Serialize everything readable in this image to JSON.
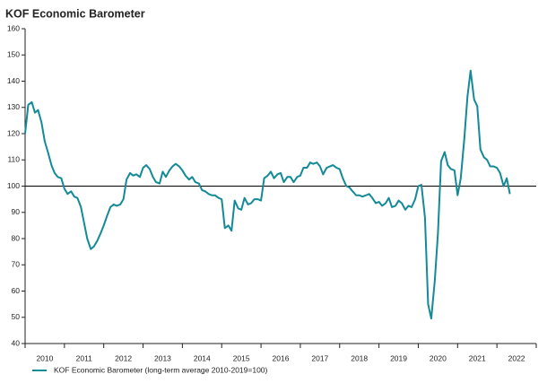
{
  "chart_data": {
    "type": "line",
    "title": "KOF Economic Barometer",
    "x": [
      2010,
      2010.08,
      2010.17,
      2010.25,
      2010.33,
      2010.42,
      2010.5,
      2010.58,
      2010.67,
      2010.75,
      2010.83,
      2010.92,
      2011,
      2011.08,
      2011.17,
      2011.25,
      2011.33,
      2011.42,
      2011.5,
      2011.58,
      2011.67,
      2011.75,
      2011.83,
      2011.92,
      2012,
      2012.08,
      2012.17,
      2012.25,
      2012.33,
      2012.42,
      2012.5,
      2012.58,
      2012.67,
      2012.75,
      2012.83,
      2012.92,
      2013,
      2013.08,
      2013.17,
      2013.25,
      2013.33,
      2013.42,
      2013.5,
      2013.58,
      2013.67,
      2013.75,
      2013.83,
      2013.92,
      2014,
      2014.08,
      2014.17,
      2014.25,
      2014.33,
      2014.42,
      2014.5,
      2014.58,
      2014.67,
      2014.75,
      2014.83,
      2014.92,
      2015,
      2015.08,
      2015.17,
      2015.25,
      2015.33,
      2015.42,
      2015.5,
      2015.58,
      2015.67,
      2015.75,
      2015.83,
      2015.92,
      2016,
      2016.08,
      2016.17,
      2016.25,
      2016.33,
      2016.42,
      2016.5,
      2016.58,
      2016.67,
      2016.75,
      2016.83,
      2016.92,
      2017,
      2017.08,
      2017.17,
      2017.25,
      2017.33,
      2017.42,
      2017.5,
      2017.58,
      2017.67,
      2017.75,
      2017.83,
      2017.92,
      2018,
      2018.08,
      2018.17,
      2018.25,
      2018.33,
      2018.42,
      2018.5,
      2018.58,
      2018.67,
      2018.75,
      2018.83,
      2018.92,
      2019,
      2019.08,
      2019.17,
      2019.25,
      2019.33,
      2019.42,
      2019.5,
      2019.58,
      2019.67,
      2019.75,
      2019.83,
      2019.92,
      2020,
      2020.08,
      2020.17,
      2020.25,
      2020.33,
      2020.42,
      2020.5,
      2020.58,
      2020.67,
      2020.75,
      2020.83,
      2020.92,
      2021,
      2021.08,
      2021.17,
      2021.25,
      2021.33,
      2021.42,
      2021.5,
      2021.58,
      2021.67,
      2021.75,
      2021.83,
      2021.92,
      2022,
      2022.08,
      2022.17,
      2022.25,
      2022.33
    ],
    "series": [
      {
        "name": "KOF Economic Barometer (long-term average 2010-2019=100)",
        "color": "#138a98",
        "values": [
          120,
          131,
          132,
          128,
          129,
          124,
          117,
          113,
          108,
          105,
          103.5,
          103,
          99,
          97,
          98,
          96,
          95.5,
          92,
          86,
          80,
          76,
          77,
          79,
          82,
          85,
          88.5,
          92,
          93,
          92.5,
          93,
          95,
          102.5,
          105,
          104,
          104.5,
          103.5,
          107,
          108,
          106.5,
          103.5,
          101.5,
          101,
          105.5,
          103.5,
          106,
          107.5,
          108.5,
          107.5,
          106,
          104,
          102.5,
          103.5,
          101.5,
          101,
          98.5,
          98,
          97,
          96.5,
          96.5,
          95.5,
          95,
          84,
          85,
          83,
          94.5,
          91.5,
          91,
          95.5,
          93,
          93.5,
          95,
          95,
          94.5,
          103,
          104,
          105.5,
          103,
          104.5,
          105,
          101.5,
          103.5,
          103.5,
          101.5,
          103.5,
          104,
          107,
          107,
          109,
          108.5,
          109,
          107.5,
          104.5,
          107,
          107.5,
          108,
          107,
          106.5,
          103,
          100,
          99.5,
          98,
          96.5,
          96.5,
          96,
          96.5,
          97,
          95.5,
          93.5,
          94,
          92.5,
          93.5,
          95.5,
          92,
          92.5,
          94.5,
          93.5,
          91,
          92.5,
          92,
          95,
          100,
          100.5,
          88,
          55,
          49.5,
          64,
          82,
          109.5,
          113,
          108,
          106.5,
          106,
          96.5,
          103,
          118,
          134,
          144,
          133,
          130.5,
          114,
          111,
          110,
          107.5,
          107.5,
          107,
          105,
          100,
          103,
          97
        ]
      }
    ],
    "xlim": [
      2010,
      2023
    ],
    "xticks": [
      {
        "value": 2010.5,
        "label": "2010"
      },
      {
        "value": 2011.5,
        "label": "2011"
      },
      {
        "value": 2012.5,
        "label": "2012"
      },
      {
        "value": 2013.5,
        "label": "2013"
      },
      {
        "value": 2014.5,
        "label": "2014"
      },
      {
        "value": 2015.5,
        "label": "2015"
      },
      {
        "value": 2016.5,
        "label": "2016"
      },
      {
        "value": 2017.5,
        "label": "2017"
      },
      {
        "value": 2018.5,
        "label": "2018"
      },
      {
        "value": 2019.5,
        "label": "2019"
      },
      {
        "value": 2020.5,
        "label": "2020"
      },
      {
        "value": 2021.5,
        "label": "2021"
      },
      {
        "value": 2022.5,
        "label": "2022"
      }
    ],
    "ylim": [
      40,
      160
    ],
    "yticks": [
      40,
      50,
      60,
      70,
      80,
      90,
      100,
      110,
      120,
      130,
      140,
      150,
      160
    ],
    "reference_line": 100,
    "legend": "bottom-left"
  }
}
